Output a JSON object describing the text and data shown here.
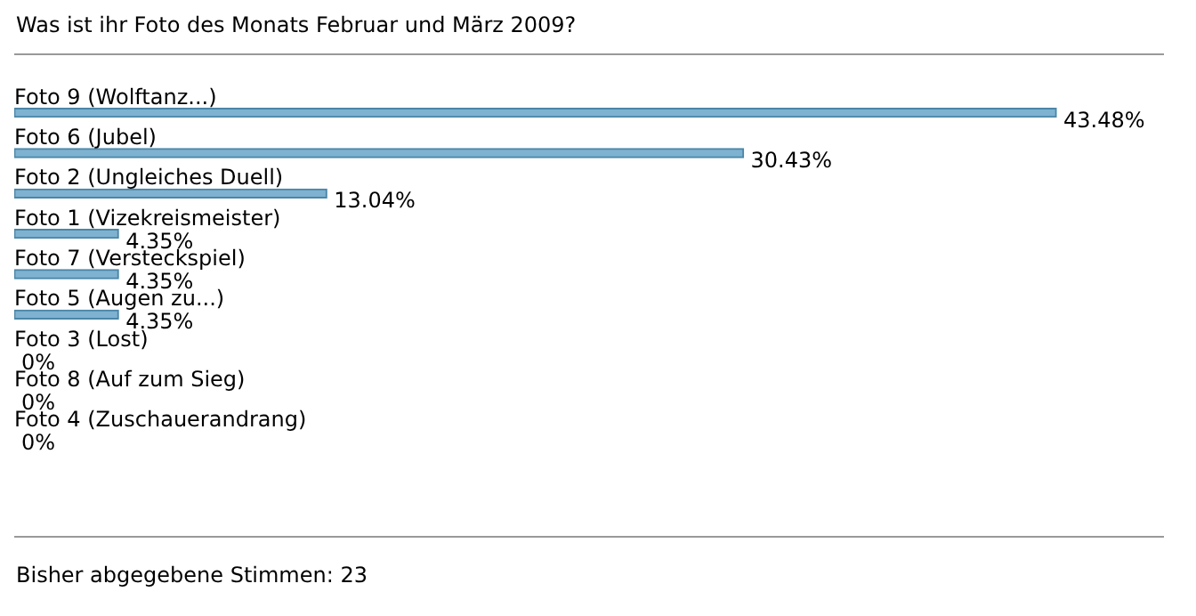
{
  "chart_data": {
    "type": "bar",
    "orientation": "horizontal",
    "title": "Was ist ihr Foto des Monats Februar und März 2009?",
    "categories": [
      "Foto 9 (Wolftanz...)",
      "Foto 6 (Jubel)",
      "Foto 2 (Ungleiches Duell)",
      "Foto 1 (Vizekreismeister)",
      "Foto 7 (Versteckspiel)",
      "Foto 5 (Augen zu...)",
      "Foto 3 (Lost)",
      "Foto 8 (Auf zum Sieg)",
      "Foto 4 (Zuschauerandrang)"
    ],
    "values": [
      43.48,
      30.43,
      13.04,
      4.35,
      4.35,
      4.35,
      0,
      0,
      0
    ],
    "value_labels": [
      "43.48%",
      "30.43%",
      "13.04%",
      "4.35%",
      "4.35%",
      "4.35%",
      "0%",
      "0%",
      "0%"
    ],
    "color": "#7fb2d0",
    "annotations": [
      "Bisher abgegebene Stimmen: 23"
    ]
  }
}
